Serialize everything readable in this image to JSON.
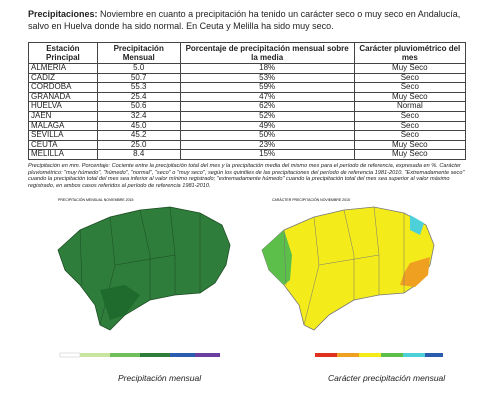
{
  "intro": {
    "label": "Precipitaciones:",
    "text": "Noviembre en cuanto a precipitación ha tenido un carácter seco o muy seco en Andalucía, salvo en Huelva donde ha sido normal. En Ceuta y Melilla ha sido muy seco."
  },
  "table": {
    "header": [
      "Estación Principal",
      "Precipitación Mensual",
      "Porcentaje de precipitación mensual sobre la media",
      "Carácter pluviométrico del mes"
    ],
    "rows": [
      [
        "ALMERIA",
        "5.0",
        "18%",
        "Muy Seco"
      ],
      [
        "CADIZ",
        "50.7",
        "53%",
        "Seco"
      ],
      [
        "CORDOBA",
        "55.3",
        "59%",
        "Seco"
      ],
      [
        "GRANADA",
        "25.4",
        "47%",
        "Muy Seco"
      ],
      [
        "HUELVA",
        "50.6",
        "62%",
        "Normal"
      ],
      [
        "JAEN",
        "32.4",
        "52%",
        "Seco"
      ],
      [
        "MALAGA",
        "45.0",
        "49%",
        "Seco"
      ],
      [
        "SEVILLA",
        "45.2",
        "50%",
        "Seco"
      ],
      [
        "CEUTA",
        "25.0",
        "23%",
        "Muy Seco"
      ],
      [
        "MELILLA",
        "8.4",
        "15%",
        "Muy Seco"
      ]
    ]
  },
  "footnote": "Precipitación en mm. Porcentaje: Cociente entre la precipitación total del mes y la precipitación media del mismo mes para el período de referencia, expresada en %. Carácter pluviométrico: \"muy húmedo\", \"húmedo\", \"normal\", \"seco\" o \"muy seco\", según los quintiles de las precipitaciones del período de referencia 1981-2010. \"Extremadamente seco\" cuando la precipitación total del mes sea inferior al valor mínimo registrado; \"extremadamente húmedo\" cuando la precipitación total del mes sea superior al valor máximo registrado, en ambos casos referidos al período de referencia 1981-2010.",
  "maps": [
    {
      "title": "PRECIPITACIÓN MENSUAL NOVIEMBRE 2015",
      "caption": "Precipitación mensual"
    },
    {
      "title": "CARÁCTER PRECIPITACIÓN NOVIEMBRE 2015",
      "caption": "Carácter precipitación mensual"
    }
  ]
}
